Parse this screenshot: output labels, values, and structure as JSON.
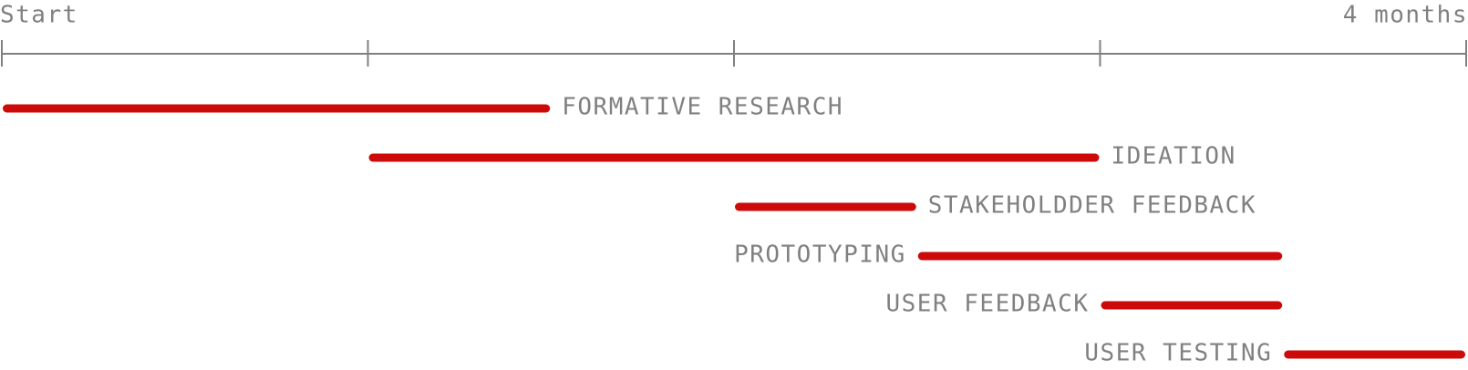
{
  "colors": {
    "axis": "#808080",
    "text": "#808080",
    "bar": "#cc0a0a"
  },
  "chart_data": {
    "type": "bar",
    "orientation": "horizontal",
    "subtype": "gantt",
    "x_unit": "months",
    "xlim": [
      0,
      4
    ],
    "xticks": [
      0,
      1,
      2,
      3,
      4
    ],
    "xtick_labels": [
      "Start",
      "",
      "",
      "",
      "4 months"
    ],
    "grid": false,
    "legend": "none",
    "tasks": [
      {
        "label": "FORMATIVE RESEARCH",
        "start": 0.0,
        "end": 1.5,
        "label_side": "right"
      },
      {
        "label": "IDEATION",
        "start": 1.0,
        "end": 3.0,
        "label_side": "right"
      },
      {
        "label": "STAKEHOLDDER FEEDBACK",
        "start": 2.0,
        "end": 2.5,
        "label_side": "right"
      },
      {
        "label": "PROTOTYPING",
        "start": 2.5,
        "end": 3.5,
        "label_side": "left"
      },
      {
        "label": "USER FEEDBACK",
        "start": 3.0,
        "end": 3.5,
        "label_side": "left"
      },
      {
        "label": "USER TESTING",
        "start": 3.5,
        "end": 4.0,
        "label_side": "left"
      }
    ]
  }
}
